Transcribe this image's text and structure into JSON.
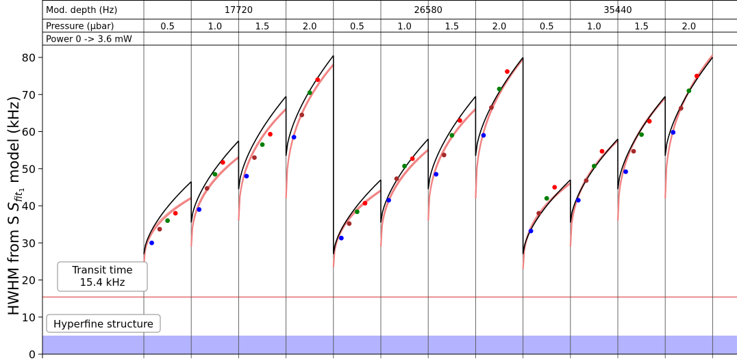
{
  "chart_data": {
    "type": "scatter",
    "ylabel": "HWHM from S",
    "ylabel_sub": "fit",
    "ylabel_subsub": "1",
    "ylabel_rest": "model (kHz)",
    "ylim": [
      0,
      82
    ],
    "yticks": [
      0,
      10,
      20,
      30,
      40,
      50,
      60,
      70,
      80
    ],
    "table": {
      "row_labels": [
        "Mod. depth (Hz)",
        "Pressure (µbar)",
        "Power 0 -> 3.6 mW"
      ],
      "mod_depths": [
        "17720",
        "26580",
        "35440"
      ],
      "pressures": [
        "0.5",
        "1.0",
        "1.5",
        "2.0"
      ]
    },
    "powers_mW": [
      0.6,
      1.2,
      1.8,
      2.4,
      3.0
    ],
    "point_colors": [
      "#0000ff",
      "#a52a2a",
      "#008000",
      "#ff0000",
      "#ff0000"
    ],
    "transit_time": {
      "label_line1": "Transit time",
      "label_line2": "15.4 kHz",
      "value": 15.4,
      "color": "#e06060"
    },
    "hyperfine": {
      "label": "Hyperfine structure",
      "band": [
        0,
        5
      ],
      "color": "#b3b3ff"
    },
    "model_colors": {
      "black": "#000000",
      "red": "#f08080"
    },
    "panels": [
      {
        "mod": "17720",
        "pressure": "0.5",
        "black": [
          27,
          46.5
        ],
        "red": [
          24,
          42
        ],
        "points": [
          30,
          33.7,
          36,
          38
        ]
      },
      {
        "mod": "17720",
        "pressure": "1.0",
        "black": [
          35.5,
          57.5
        ],
        "red": [
          29,
          53
        ],
        "points": [
          39,
          44.7,
          48.5,
          51.7
        ]
      },
      {
        "mod": "17720",
        "pressure": "1.5",
        "black": [
          44.5,
          69.5
        ],
        "red": [
          36,
          66
        ],
        "points": [
          48,
          53,
          56.5,
          59.3
        ]
      },
      {
        "mod": "17720",
        "pressure": "2.0",
        "black": [
          53.5,
          80.5
        ],
        "red": [
          42,
          78
        ],
        "points": [
          58.5,
          64.5,
          70.5,
          74
        ]
      },
      {
        "mod": "26580",
        "pressure": "0.5",
        "black": [
          27,
          47
        ],
        "red": [
          23.5,
          44
        ],
        "points": [
          31.3,
          35.2,
          38.4,
          40.7
        ]
      },
      {
        "mod": "26580",
        "pressure": "1.0",
        "black": [
          35.5,
          58
        ],
        "red": [
          29,
          55
        ],
        "points": [
          41.5,
          47.3,
          50.7,
          52.7
        ]
      },
      {
        "mod": "26580",
        "pressure": "1.5",
        "black": [
          44.5,
          69.5
        ],
        "red": [
          36,
          66
        ],
        "points": [
          48.5,
          53.7,
          59,
          63
        ]
      },
      {
        "mod": "26580",
        "pressure": "2.0",
        "black": [
          53.5,
          80
        ],
        "red": [
          42,
          79.5
        ],
        "points": [
          59,
          66.5,
          71.5,
          76.2
        ]
      },
      {
        "mod": "35440",
        "pressure": "0.5",
        "black": [
          27,
          47
        ],
        "red": [
          23,
          46
        ],
        "points": [
          33.2,
          38,
          42,
          45
        ]
      },
      {
        "mod": "35440",
        "pressure": "1.0",
        "black": [
          35.5,
          58
        ],
        "red": [
          29,
          57.5
        ],
        "points": [
          41.5,
          46.8,
          50.7,
          54.7
        ]
      },
      {
        "mod": "35440",
        "pressure": "1.5",
        "black": [
          44.5,
          69.5
        ],
        "red": [
          36,
          69
        ],
        "points": [
          49.2,
          54.7,
          59.2,
          62.8
        ]
      },
      {
        "mod": "35440",
        "pressure": "2.0",
        "black": [
          53.5,
          80
        ],
        "red": [
          42,
          80.5
        ],
        "points": [
          59.8,
          66.3,
          71,
          75
        ]
      }
    ]
  }
}
